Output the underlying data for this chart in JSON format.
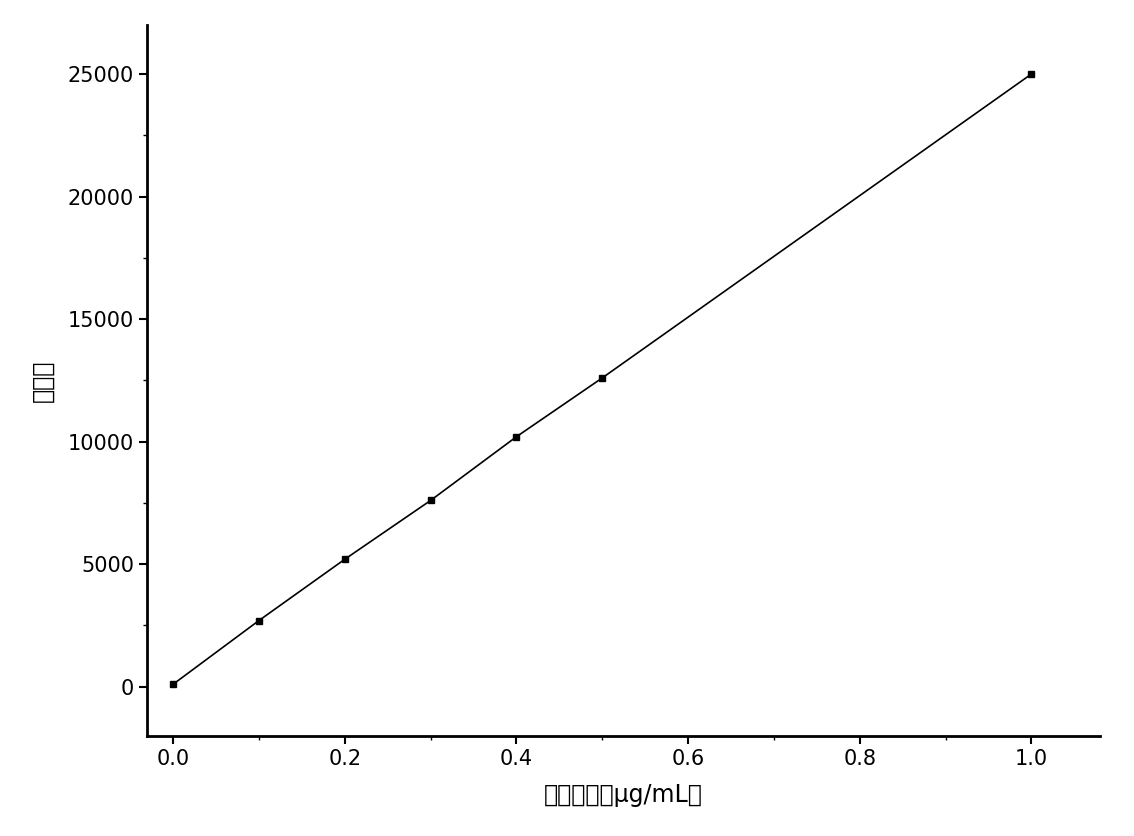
{
  "x": [
    0.0,
    0.1,
    0.2,
    0.3,
    0.4,
    0.5,
    1.0
  ],
  "y": [
    100,
    2700,
    5200,
    7600,
    10200,
    12600,
    25000
  ],
  "xlabel": "丙烯酰胺（μg/mL）",
  "ylabel": "峰面积",
  "line_color": "#000000",
  "marker": "s",
  "marker_color": "#000000",
  "marker_size": 5,
  "linewidth": 1.2,
  "xlim": [
    -0.03,
    1.08
  ],
  "ylim": [
    -2000,
    27000
  ],
  "xticks": [
    0.0,
    0.2,
    0.4,
    0.6,
    0.8,
    1.0
  ],
  "yticks": [
    0,
    5000,
    10000,
    15000,
    20000,
    25000
  ],
  "background_color": "#ffffff",
  "tick_fontsize": 15,
  "label_fontsize": 17
}
